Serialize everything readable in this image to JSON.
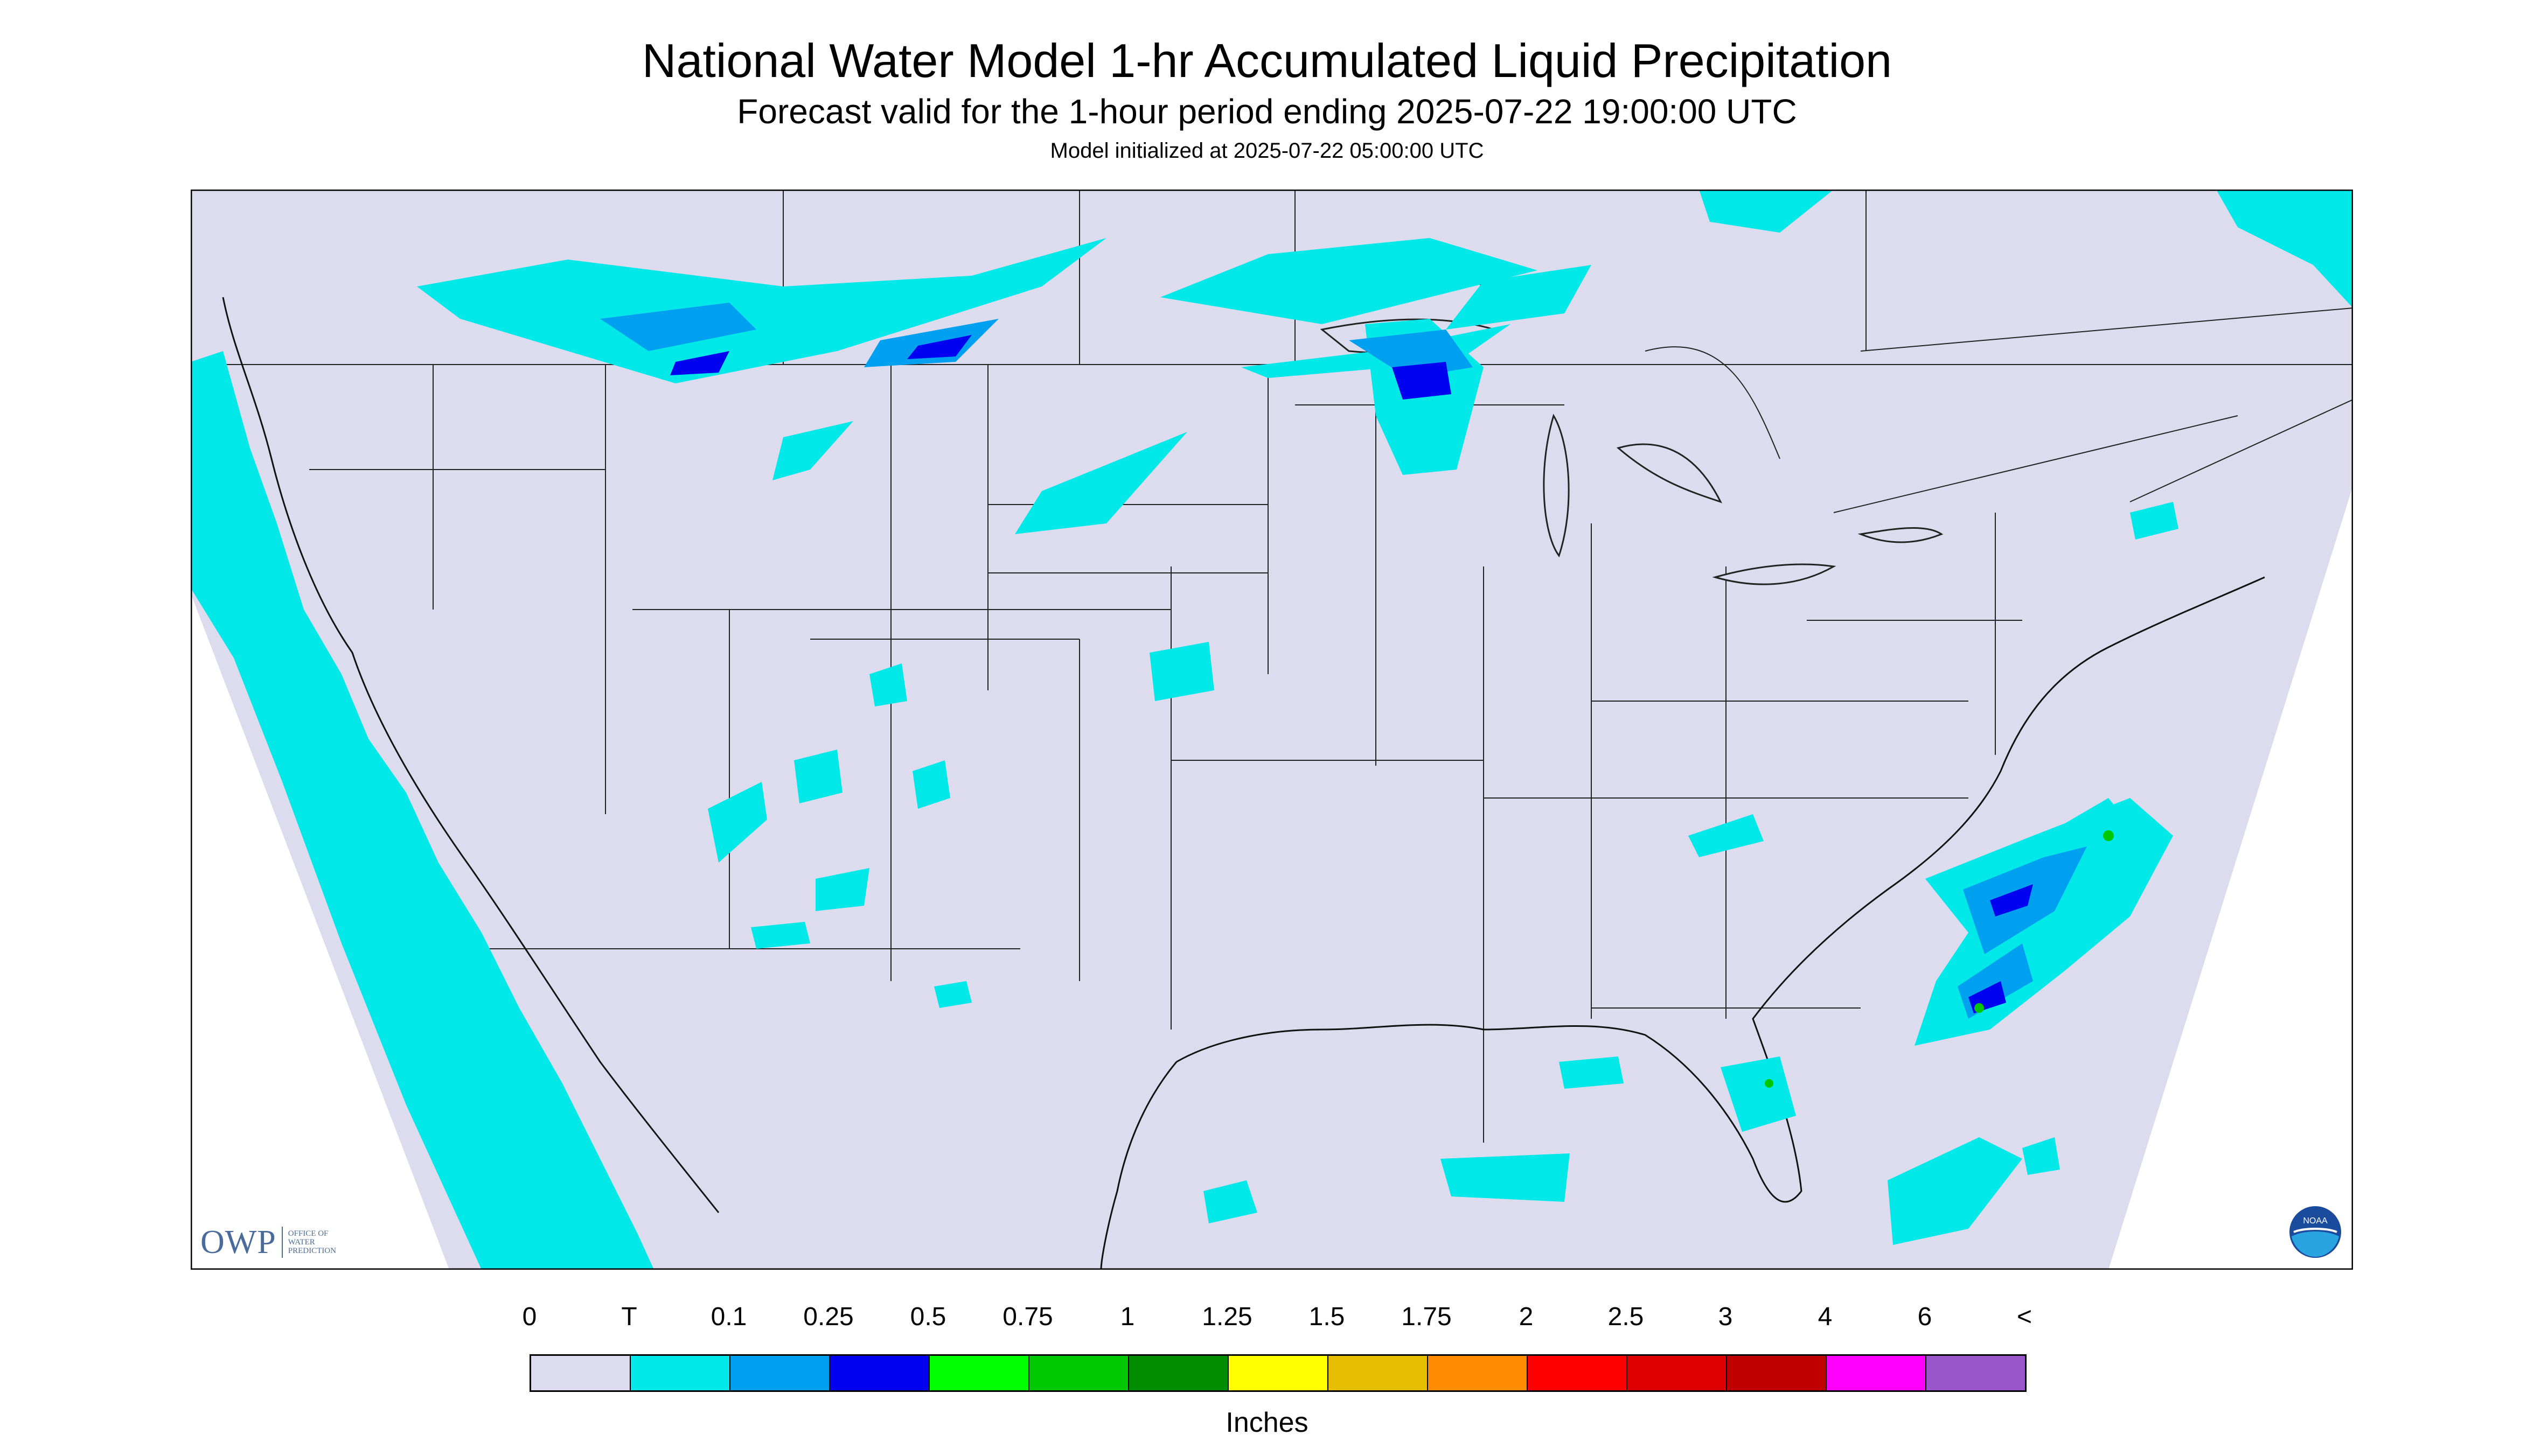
{
  "header": {
    "title": "National Water Model 1-hr Accumulated Liquid Precipitation",
    "subtitle": "Forecast valid for the 1-hour period ending 2025-07-22 19:00:00 UTC",
    "init_line": "Model initialized at 2025-07-22 05:00:00 UTC"
  },
  "logos": {
    "owp_big": "OWP",
    "owp_small": "OFFICE OF\nWATER\nPREDICTION",
    "noaa": "NOAA"
  },
  "legend": {
    "labels": [
      "0",
      "T",
      "0.1",
      "0.25",
      "0.5",
      "0.75",
      "1",
      "1.25",
      "1.5",
      "1.75",
      "2",
      "2.5",
      "3",
      "4",
      "6",
      "<"
    ],
    "colors": [
      "#dcdcee",
      "#00e8e8",
      "#00a0f0",
      "#0000f0",
      "#00ff00",
      "#00c800",
      "#008c00",
      "#ffff00",
      "#e6be00",
      "#ff8c00",
      "#ff0000",
      "#dc0000",
      "#c00000",
      "#ff00ff",
      "#9955c9"
    ],
    "units": "Inches"
  },
  "map": {
    "background": "#dcdcee",
    "border_color": "#000000",
    "precip_colors": {
      "trace": "#00e8e8",
      "light": "#00a0f0",
      "moderate": "#0000f0",
      "heavy": "#00c800"
    }
  }
}
